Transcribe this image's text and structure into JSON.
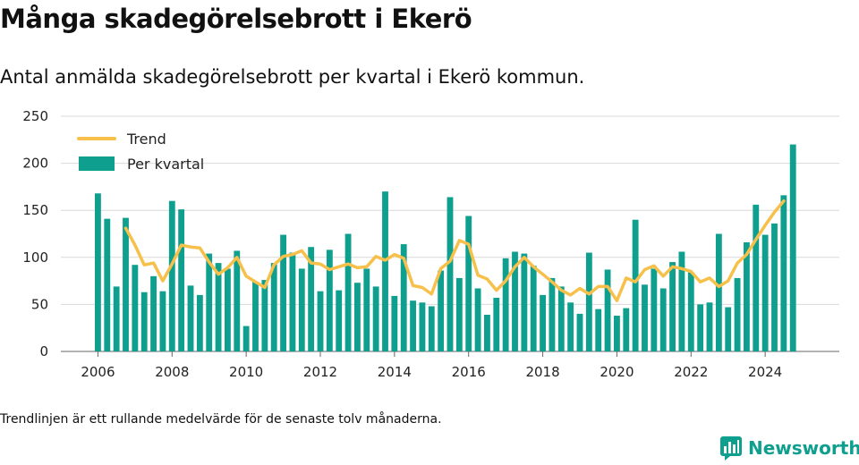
{
  "title": "Många skadegörelsebrott i Ekerö",
  "subtitle": "Antal anmälda skadegörelsebrott per kvartal i Ekerö kommun.",
  "footnote": "Trendlinjen är ett rullande medelvärde för de senaste tolv månaderna.",
  "brand": "Newsworthy",
  "colors": {
    "bars": "#0e9f8f",
    "trend": "#f7c04a",
    "brand": "#0e9f8f"
  },
  "chart_data": {
    "type": "bar",
    "x_start": 2006.0,
    "x_step": 0.25,
    "xlim": [
      2005.0,
      2026.0
    ],
    "ylim": [
      0,
      250
    ],
    "yticks": [
      0,
      50,
      100,
      150,
      200,
      250
    ],
    "xticks": [
      2006,
      2008,
      2010,
      2012,
      2014,
      2016,
      2018,
      2020,
      2022,
      2024
    ],
    "grid": true,
    "legend_position": "top-left",
    "series": [
      {
        "name": "Per kvartal",
        "type": "bar",
        "values": [
          168,
          141,
          69,
          142,
          92,
          63,
          80,
          64,
          160,
          151,
          70,
          60,
          104,
          94,
          88,
          107,
          27,
          74,
          76,
          94,
          124,
          105,
          88,
          111,
          64,
          108,
          65,
          125,
          73,
          88,
          69,
          170,
          59,
          114,
          54,
          52,
          48,
          86,
          164,
          78,
          144,
          67,
          39,
          57,
          99,
          106,
          104,
          91,
          60,
          78,
          69,
          52,
          40,
          105,
          45,
          87,
          38,
          46,
          140,
          71,
          88,
          67,
          95,
          106,
          84,
          50,
          52,
          125,
          47,
          78,
          116,
          156,
          124,
          136,
          166,
          220
        ]
      },
      {
        "name": "Trend",
        "type": "line",
        "x_start": 2006.75,
        "values": [
          131,
          113,
          92,
          94,
          75,
          93,
          113,
          111,
          110,
          95,
          82,
          89,
          100,
          80,
          74,
          68,
          92,
          101,
          103,
          107,
          94,
          93,
          87,
          90,
          93,
          89,
          90,
          101,
          97,
          103,
          99,
          70,
          68,
          61,
          88,
          96,
          118,
          114,
          81,
          77,
          65,
          75,
          90,
          100,
          90,
          82,
          74,
          65,
          60,
          67,
          61,
          69,
          69,
          54,
          78,
          74,
          87,
          91,
          80,
          90,
          88,
          85,
          74,
          78,
          69,
          75,
          94,
          103,
          119,
          134,
          148,
          160
        ]
      }
    ]
  }
}
